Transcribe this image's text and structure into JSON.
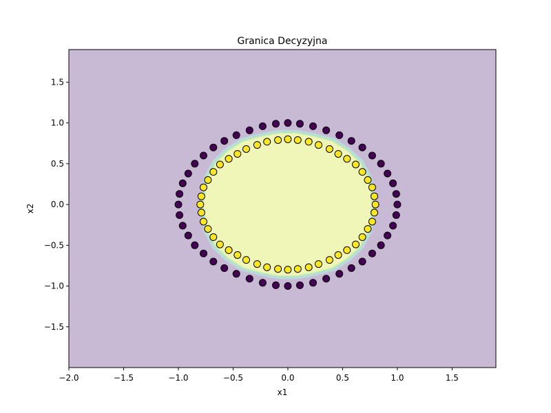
{
  "chart_data": {
    "type": "scatter",
    "title": "Granica Decyzyjna",
    "xlabel": "x1",
    "ylabel": "x2",
    "xlim": [
      -2.0,
      1.9
    ],
    "ylim": [
      -2.0,
      1.9
    ],
    "x_ticks": [
      -2.0,
      -1.5,
      -1.0,
      -0.5,
      0.0,
      0.5,
      1.0,
      1.5
    ],
    "y_ticks": [
      -1.5,
      -1.0,
      -0.5,
      0.0,
      0.5,
      1.0,
      1.5
    ],
    "x_tick_labels": [
      "−2.0",
      "−1.5",
      "−1.0",
      "−0.5",
      "0.0",
      "0.5",
      "1.0",
      "1.5"
    ],
    "y_tick_labels": [
      "−1.5",
      "−1.0",
      "−0.5",
      "0.0",
      "0.5",
      "1.0",
      "1.5"
    ],
    "grid": false,
    "decision_region": {
      "outer_class_color": "#c8b9d4",
      "inner_class_color": "#f0f6b8",
      "boundary_colors": [
        "#bcd9e0",
        "#b3e2c8",
        "#d6efb0"
      ],
      "boundary_x": [
        0.78,
        0.74,
        0.66,
        0.55,
        0.41,
        0.24,
        0.08,
        -0.08,
        -0.24,
        -0.41,
        -0.55,
        -0.66,
        -0.74,
        -0.78,
        -0.74,
        -0.66,
        -0.55,
        -0.41,
        -0.24,
        -0.08,
        0.08,
        0.24,
        0.41,
        0.55,
        0.66,
        0.74,
        0.78
      ],
      "boundary_y": [
        0.0,
        0.32,
        0.52,
        0.66,
        0.78,
        0.84,
        0.88,
        0.88,
        0.84,
        0.78,
        0.66,
        0.52,
        0.32,
        0.0,
        -0.32,
        -0.52,
        -0.66,
        -0.78,
        -0.84,
        -0.88,
        -0.88,
        -0.84,
        -0.78,
        -0.66,
        -0.52,
        -0.32,
        0.0
      ]
    },
    "series": [
      {
        "class": 0,
        "color": "#440154",
        "x": [
          1.0,
          0.99,
          0.96,
          0.91,
          0.85,
          0.77,
          0.68,
          0.58,
          0.47,
          0.35,
          0.23,
          0.11,
          0.0,
          -0.11,
          -0.23,
          -0.35,
          -0.47,
          -0.58,
          -0.68,
          -0.77,
          -0.85,
          -0.91,
          -0.96,
          -0.99,
          -1.0,
          -0.99,
          -0.96,
          -0.91,
          -0.85,
          -0.77,
          -0.68,
          -0.58,
          -0.47,
          -0.35,
          -0.23,
          -0.11,
          0.0,
          0.11,
          0.23,
          0.35,
          0.47,
          0.58,
          0.68,
          0.77,
          0.85,
          0.91,
          0.96,
          0.99
        ],
        "y": [
          0.0,
          0.13,
          0.26,
          0.38,
          0.5,
          0.6,
          0.7,
          0.78,
          0.85,
          0.91,
          0.96,
          0.99,
          1.0,
          0.99,
          0.96,
          0.91,
          0.85,
          0.78,
          0.7,
          0.6,
          0.5,
          0.38,
          0.26,
          0.13,
          0.0,
          -0.13,
          -0.26,
          -0.38,
          -0.5,
          -0.6,
          -0.7,
          -0.78,
          -0.85,
          -0.91,
          -0.96,
          -0.99,
          -1.0,
          -0.99,
          -0.96,
          -0.91,
          -0.85,
          -0.78,
          -0.7,
          -0.6,
          -0.5,
          -0.38,
          -0.26,
          -0.13
        ]
      },
      {
        "class": 1,
        "color": "#fde725",
        "x": [
          0.8,
          0.79,
          0.77,
          0.73,
          0.68,
          0.62,
          0.54,
          0.46,
          0.38,
          0.28,
          0.19,
          0.09,
          0.0,
          -0.09,
          -0.19,
          -0.28,
          -0.38,
          -0.46,
          -0.54,
          -0.62,
          -0.68,
          -0.73,
          -0.77,
          -0.79,
          -0.8,
          -0.79,
          -0.77,
          -0.73,
          -0.68,
          -0.62,
          -0.54,
          -0.46,
          -0.38,
          -0.28,
          -0.19,
          -0.09,
          0.0,
          0.09,
          0.19,
          0.28,
          0.38,
          0.46,
          0.54,
          0.62,
          0.68,
          0.73,
          0.77,
          0.79
        ],
        "y": [
          0.0,
          0.1,
          0.21,
          0.3,
          0.4,
          0.49,
          0.56,
          0.62,
          0.68,
          0.73,
          0.77,
          0.79,
          0.8,
          0.79,
          0.77,
          0.73,
          0.68,
          0.62,
          0.56,
          0.49,
          0.4,
          0.3,
          0.21,
          0.1,
          0.0,
          -0.1,
          -0.21,
          -0.3,
          -0.4,
          -0.49,
          -0.56,
          -0.62,
          -0.68,
          -0.73,
          -0.77,
          -0.79,
          -0.8,
          -0.79,
          -0.77,
          -0.73,
          -0.68,
          -0.62,
          -0.56,
          -0.49,
          -0.4,
          -0.3,
          -0.21,
          -0.1
        ]
      }
    ]
  }
}
